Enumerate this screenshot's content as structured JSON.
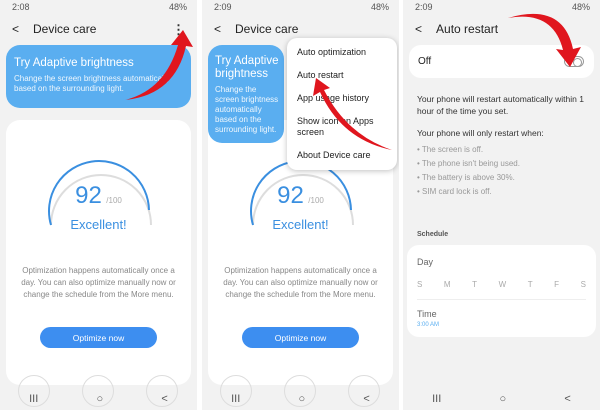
{
  "panels": [
    {
      "time": "2:08",
      "battery": "48%",
      "title": "Device care",
      "banner": {
        "title": "Try Adaptive brightness",
        "text": "Change the screen brightness automatically based on the surrounding light."
      },
      "score": "92",
      "score_max": "/100",
      "rating": "Excellent!",
      "info": "Optimization happens automatically once a day. You can also optimize manually now or change the schedule from the More menu.",
      "button": "Optimize now"
    },
    {
      "time": "2:09",
      "battery": "48%",
      "title": "Device care",
      "banner_title": "Try Adaptive brightness",
      "banner_text": "Change the screen brightness automatically based on the surrounding light.",
      "score": "92",
      "score_max": "/100",
      "rating": "Excellent!",
      "info": "Optimization happens automatically once a day. You can also optimize manually now or change the schedule from the More menu.",
      "button": "Optimize now",
      "menu": [
        "Auto optimization",
        "Auto restart",
        "App usage history",
        "Show icon on Apps screen",
        "About Device care"
      ]
    },
    {
      "time": "2:09",
      "battery": "48%",
      "title": "Auto restart",
      "toggle_label": "Off",
      "toggle_on": false,
      "text1": "Your phone will restart automatically within 1 hour of the time you set.",
      "text2": "Your phone will only restart when:",
      "conditions": [
        "The screen is off.",
        "The phone isn't being used.",
        "The battery is above 30%.",
        "SIM card lock is off."
      ],
      "schedule_label": "Schedule",
      "day_label": "Day",
      "days": [
        "S",
        "M",
        "T",
        "W",
        "T",
        "F",
        "S"
      ],
      "time_label": "Time",
      "time_value": "3:00 AM"
    }
  ],
  "colors": {
    "accent": "#3d8ef0",
    "banner": "#5aaef0",
    "arrow": "#e0161e"
  },
  "nav": {
    "recents": "III",
    "home": "○",
    "back": "<"
  }
}
